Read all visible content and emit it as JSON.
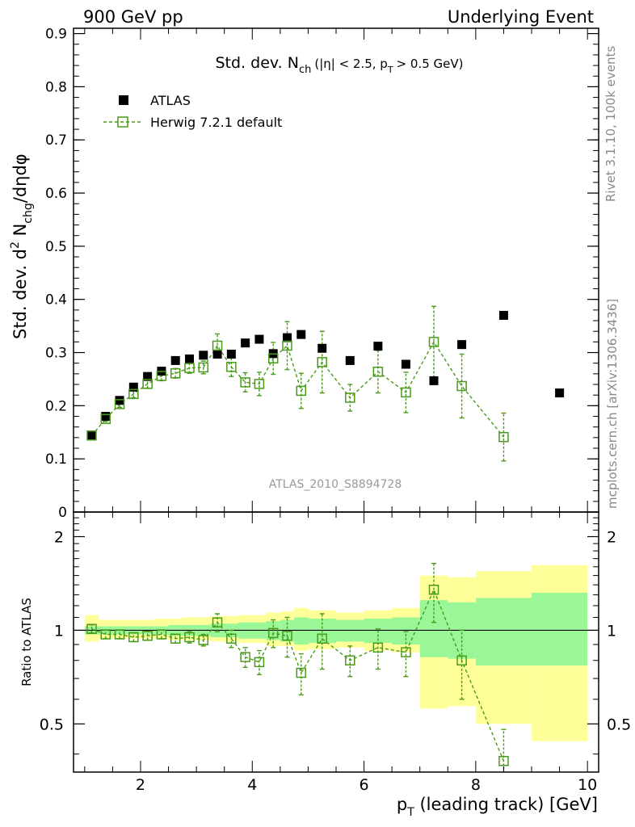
{
  "header": {
    "left": "900 GeV pp",
    "right": "Underlying Event"
  },
  "side": {
    "rivet": "Rivet 3.1.10,  100k events",
    "mcplots": "mcplots.cern.ch [arXiv:1306.3436]"
  },
  "chart_data": [
    {
      "type": "scatter",
      "title": "Std. dev. N",
      "title_sub": "ch",
      "title_tail": "(|η| < 2.5, p",
      "title_tail_sub": "T",
      "title_tail_end": "> 0.5 GeV)",
      "ylabel_main": "Std. dev. d",
      "ylabel_sup": "2",
      "ylabel_n": " N",
      "ylabel_sub": "chg",
      "ylabel_end": "/dηdφ",
      "xlabel": "",
      "xlim": [
        0.8,
        10.2
      ],
      "ylim": [
        0,
        0.91
      ],
      "yticks": [
        "0",
        "0.1",
        "0.2",
        "0.3",
        "0.4",
        "0.5",
        "0.6",
        "0.7",
        "0.8",
        "0.9"
      ],
      "watermark": "ATLAS_2010_S8894728",
      "legend_position": "top-left",
      "series": [
        {
          "name": "ATLAS",
          "color": "#000000",
          "marker": "filled-square",
          "x": [
            1.125,
            1.375,
            1.625,
            1.875,
            2.125,
            2.375,
            2.625,
            2.875,
            3.125,
            3.375,
            3.625,
            3.875,
            4.125,
            4.375,
            4.625,
            4.875,
            5.25,
            5.75,
            6.25,
            6.75,
            7.25,
            7.75,
            8.5,
            9.5
          ],
          "y": [
            0.143,
            0.18,
            0.21,
            0.235,
            0.255,
            0.265,
            0.285,
            0.288,
            0.295,
            0.297,
            0.297,
            0.318,
            0.325,
            0.298,
            0.328,
            0.334,
            0.308,
            0.285,
            0.312,
            0.278,
            0.247,
            0.315,
            0.37,
            0.224
          ]
        },
        {
          "name": "Herwig 7.2.1 default",
          "color": "#4a9a1a",
          "marker": "open-square",
          "line": "dashed",
          "x": [
            1.125,
            1.375,
            1.625,
            1.875,
            2.125,
            2.375,
            2.625,
            2.875,
            3.125,
            3.375,
            3.625,
            3.875,
            4.125,
            4.375,
            4.625,
            4.875,
            5.25,
            5.75,
            6.25,
            6.75,
            7.25,
            7.75,
            8.5
          ],
          "y": [
            0.144,
            0.175,
            0.203,
            0.222,
            0.241,
            0.256,
            0.261,
            0.271,
            0.272,
            0.313,
            0.273,
            0.244,
            0.241,
            0.289,
            0.313,
            0.228,
            0.282,
            0.215,
            0.264,
            0.225,
            0.32,
            0.237,
            0.141
          ],
          "yerr": [
            0.004,
            0.005,
            0.006,
            0.007,
            0.008,
            0.009,
            0.009,
            0.01,
            0.012,
            0.022,
            0.018,
            0.018,
            0.022,
            0.03,
            0.045,
            0.033,
            0.058,
            0.025,
            0.04,
            0.038,
            0.067,
            0.06,
            0.045
          ]
        }
      ]
    },
    {
      "type": "scatter",
      "ylabel": "Ratio to ATLAS",
      "xlabel": "p",
      "xlabel_sub": "T",
      "xlabel_tail": " (leading track) [GeV]",
      "xlim": [
        0.8,
        10.2
      ],
      "ylim": [
        0.35,
        2.4
      ],
      "scale": "log",
      "xticks": [
        "2",
        "4",
        "6",
        "8",
        "10"
      ],
      "yticks": [
        "0.5",
        "1",
        "2"
      ],
      "bands": {
        "edges": [
          1.0,
          1.25,
          1.5,
          1.75,
          2.0,
          2.25,
          2.5,
          2.75,
          3.0,
          3.25,
          3.5,
          3.75,
          4.0,
          4.25,
          4.5,
          4.75,
          5.0,
          5.5,
          6.0,
          6.5,
          7.0,
          7.5,
          8.0,
          9.0,
          10.0
        ],
        "inner_color": "#99f797",
        "outer_color": "#ffff99",
        "inner_lo": [
          0.97,
          0.97,
          0.97,
          0.97,
          0.97,
          0.97,
          0.96,
          0.96,
          0.96,
          0.95,
          0.95,
          0.94,
          0.94,
          0.93,
          0.92,
          0.9,
          0.91,
          0.92,
          0.91,
          0.9,
          0.82,
          0.81,
          0.77,
          0.77
        ],
        "inner_hi": [
          1.03,
          1.03,
          1.03,
          1.03,
          1.03,
          1.03,
          1.04,
          1.04,
          1.04,
          1.05,
          1.05,
          1.06,
          1.06,
          1.07,
          1.08,
          1.1,
          1.09,
          1.08,
          1.09,
          1.1,
          1.25,
          1.23,
          1.27,
          1.32
        ],
        "outer_lo": [
          0.92,
          0.94,
          0.94,
          0.94,
          0.94,
          0.94,
          0.93,
          0.93,
          0.93,
          0.92,
          0.92,
          0.91,
          0.91,
          0.89,
          0.89,
          0.86,
          0.87,
          0.88,
          0.86,
          0.85,
          0.56,
          0.57,
          0.5,
          0.44
        ],
        "outer_hi": [
          1.12,
          1.08,
          1.08,
          1.08,
          1.08,
          1.09,
          1.09,
          1.1,
          1.1,
          1.11,
          1.11,
          1.12,
          1.12,
          1.14,
          1.15,
          1.18,
          1.16,
          1.14,
          1.16,
          1.18,
          1.5,
          1.48,
          1.55,
          1.62
        ]
      },
      "series": [
        {
          "name": "Herwig 7.2.1 default",
          "x": [
            1.125,
            1.375,
            1.625,
            1.875,
            2.125,
            2.375,
            2.625,
            2.875,
            3.125,
            3.375,
            3.625,
            3.875,
            4.125,
            4.375,
            4.625,
            4.875,
            5.25,
            5.75,
            6.25,
            6.75,
            7.25,
            7.75,
            8.5
          ],
          "y": [
            1.01,
            0.97,
            0.97,
            0.95,
            0.96,
            0.97,
            0.94,
            0.95,
            0.93,
            1.06,
            0.94,
            0.82,
            0.79,
            0.98,
            0.96,
            0.73,
            0.94,
            0.8,
            0.88,
            0.85,
            1.35,
            0.8,
            0.38
          ],
          "yerr": [
            0.03,
            0.03,
            0.03,
            0.03,
            0.03,
            0.03,
            0.03,
            0.04,
            0.04,
            0.07,
            0.06,
            0.06,
            0.07,
            0.1,
            0.14,
            0.11,
            0.19,
            0.09,
            0.13,
            0.14,
            0.29,
            0.2,
            0.1
          ]
        }
      ]
    }
  ]
}
